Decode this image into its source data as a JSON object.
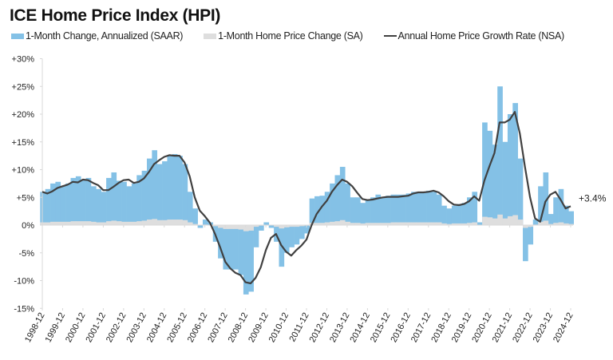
{
  "chart_data": {
    "type": "bar",
    "title": "ICE Home Price Index (HPI)",
    "start": "1998-12",
    "end": "2024-12",
    "frequency": "quarterly",
    "ylim": [
      -15,
      30
    ],
    "y_ticks": [
      "+30%",
      "+25%",
      "+20%",
      "+15%",
      "+10%",
      "+5%",
      "0%",
      "-5%",
      "-10%",
      "-15%"
    ],
    "y_tick_values": [
      30,
      25,
      20,
      15,
      10,
      5,
      0,
      -5,
      -10,
      -15
    ],
    "x_ticks": [
      "1998-12",
      "1999-12",
      "2000-12",
      "2001-12",
      "2002-12",
      "2003-12",
      "2004-12",
      "2005-12",
      "2006-12",
      "2007-12",
      "2008-12",
      "2009-12",
      "2010-12",
      "2011-12",
      "2012-12",
      "2013-12",
      "2014-12",
      "2015-12",
      "2016-12",
      "2017-12",
      "2018-12",
      "2019-12",
      "2020-12",
      "2021-12",
      "2022-12",
      "2023-12",
      "2024-12"
    ],
    "grid": false,
    "legend_placement": "top",
    "series": [
      {
        "name": "1-Month Change, Annualized (SAAR)",
        "type": "bar",
        "color": "#84c1e6",
        "values": [
          6.0,
          6.5,
          7.5,
          7.8,
          7.0,
          7.5,
          8.5,
          8.8,
          8.2,
          8.5,
          7.0,
          6.5,
          6.0,
          8.5,
          9.5,
          8.0,
          7.8,
          7.0,
          7.5,
          9.0,
          9.8,
          12.0,
          13.5,
          11.0,
          11.5,
          12.5,
          12.8,
          12.5,
          11.0,
          6.0,
          3.0,
          -0.5,
          1.0,
          0.5,
          -3.0,
          -6.0,
          -8.0,
          -8.0,
          -8.0,
          -9.0,
          -12.5,
          -12.0,
          -4.0,
          -1.0,
          0.5,
          -0.5,
          -3.0,
          -7.5,
          -5.0,
          -4.0,
          -3.5,
          -2.5,
          -1.5,
          4.8,
          5.2,
          5.3,
          6.0,
          7.5,
          9.0,
          10.5,
          7.5,
          5.0,
          5.0,
          4.0,
          4.5,
          5.0,
          5.5,
          5.0,
          5.3,
          5.5,
          5.5,
          5.5,
          5.7,
          6.0,
          6.0,
          6.0,
          6.2,
          6.0,
          5.5,
          3.5,
          3.0,
          3.5,
          3.8,
          4.0,
          5.0,
          6.0,
          0.5,
          18.5,
          17.0,
          14.5,
          25.0,
          15.0,
          20.0,
          22.0,
          12.0,
          -6.5,
          -3.5,
          1.0,
          7.0,
          9.5,
          2.0,
          5.0,
          6.5,
          3.5,
          2.5
        ]
      },
      {
        "name": "1-Month Home Price Change (SA)",
        "type": "bar",
        "color": "#dedede",
        "values": [
          0.5,
          0.5,
          0.6,
          0.6,
          0.6,
          0.6,
          0.7,
          0.7,
          0.7,
          0.7,
          0.6,
          0.5,
          0.5,
          0.7,
          0.8,
          0.7,
          0.6,
          0.6,
          0.6,
          0.7,
          0.8,
          1.0,
          1.1,
          0.9,
          0.9,
          1.0,
          1.0,
          1.0,
          0.9,
          0.5,
          0.2,
          0.0,
          0.1,
          0.0,
          -0.2,
          -0.5,
          -0.7,
          -0.7,
          -0.7,
          -0.8,
          -1.1,
          -1.0,
          -0.3,
          -0.1,
          0.0,
          0.0,
          -0.3,
          -0.6,
          -0.4,
          -0.3,
          -0.3,
          -0.2,
          -0.1,
          0.4,
          0.4,
          0.4,
          0.5,
          0.6,
          0.7,
          0.9,
          0.6,
          0.4,
          0.4,
          0.3,
          0.4,
          0.4,
          0.4,
          0.4,
          0.4,
          0.5,
          0.5,
          0.5,
          0.5,
          0.5,
          0.5,
          0.5,
          0.5,
          0.5,
          0.5,
          0.3,
          0.2,
          0.3,
          0.3,
          0.3,
          0.4,
          0.5,
          0.0,
          1.5,
          1.4,
          1.2,
          1.9,
          1.2,
          1.6,
          1.8,
          1.0,
          -0.5,
          -0.3,
          0.1,
          0.6,
          0.8,
          0.2,
          0.4,
          0.5,
          0.3,
          0.2
        ]
      },
      {
        "name": "Annual Home Price Growth Rate (NSA)",
        "type": "line",
        "color": "#404040",
        "values": [
          6.0,
          5.7,
          6.1,
          6.7,
          7.0,
          7.3,
          7.8,
          7.7,
          8.2,
          8.1,
          7.6,
          7.2,
          6.3,
          6.3,
          6.9,
          7.6,
          8.1,
          8.2,
          7.6,
          7.8,
          8.4,
          9.6,
          11.0,
          11.7,
          12.3,
          12.6,
          12.5,
          12.5,
          11.3,
          8.8,
          5.0,
          2.6,
          1.6,
          0.4,
          -1.6,
          -4.0,
          -6.6,
          -7.8,
          -8.6,
          -9.0,
          -10.3,
          -10.5,
          -9.5,
          -7.6,
          -4.5,
          -2.3,
          -1.6,
          -3.6,
          -4.8,
          -5.5,
          -4.5,
          -3.7,
          -2.6,
          0.0,
          2.0,
          3.3,
          4.4,
          6.0,
          7.2,
          8.2,
          7.8,
          7.0,
          5.8,
          4.7,
          4.5,
          4.6,
          4.8,
          5.0,
          5.1,
          5.1,
          5.1,
          5.2,
          5.3,
          5.7,
          5.9,
          5.9,
          6.0,
          6.2,
          5.9,
          5.2,
          4.3,
          3.7,
          3.6,
          3.8,
          4.3,
          5.2,
          4.4,
          8.0,
          10.6,
          13.0,
          18.5,
          18.5,
          19.0,
          20.4,
          16.5,
          10.5,
          5.0,
          1.2,
          0.6,
          4.2,
          5.5,
          6.0,
          4.6,
          3.0,
          3.4
        ]
      }
    ],
    "annotations": [
      {
        "text": "+3.4%",
        "date": "2024-12",
        "value": 3.4
      }
    ]
  }
}
